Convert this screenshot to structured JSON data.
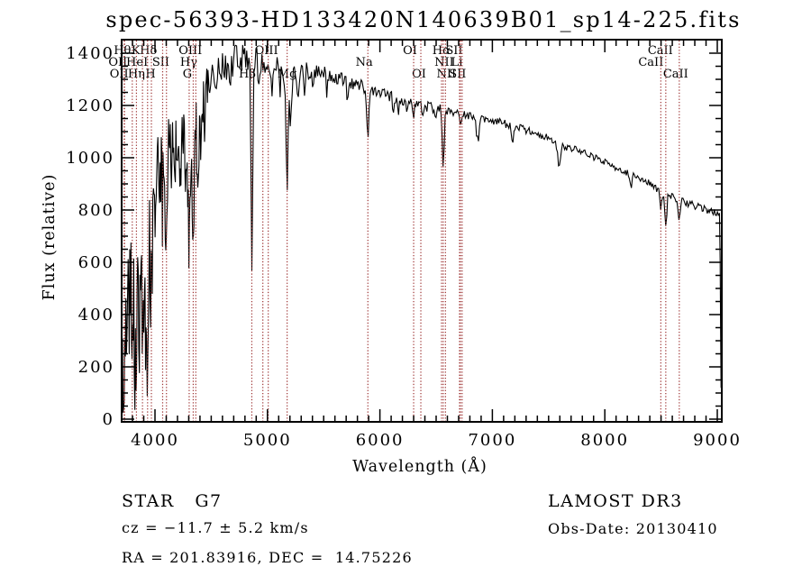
{
  "title": "spec-56393-HD133420N140639B01_sp14-225.fits",
  "footer": {
    "class_label": "STAR",
    "subclass": "G7",
    "survey": "LAMOST DR3",
    "cz": "cz = −11.7 ± 5.2 km/s",
    "obs_date": "Obs-Date: 20130410",
    "coords": "RA = 201.83916, DEC =  14.75226"
  },
  "chart_data": {
    "type": "line",
    "title": "spec-56393-HD133420N140639B01_sp14-225.fits",
    "xlabel": "Wavelength (Å)",
    "ylabel": "Flux (relative)",
    "xlim": [
      3703,
      9040
    ],
    "ylim": [
      0,
      1400
    ],
    "xticks": [
      4000,
      5000,
      6000,
      7000,
      8000,
      9000
    ],
    "yticks": [
      0,
      200,
      400,
      600,
      800,
      1000,
      1200,
      1400
    ],
    "x_minor_step": 100,
    "y_minor_step": 50,
    "grid": false,
    "curve_color": "#000000",
    "line_marker_color": "#9e3434",
    "spectral_lines": [
      {
        "wavelength": 3726,
        "label": "OII",
        "row": 2,
        "dx": -7
      },
      {
        "wavelength": 3729,
        "label": "OII",
        "row": 3,
        "dx": -6
      },
      {
        "wavelength": 3798,
        "label": "Hθ",
        "row": 1,
        "dx": -11
      },
      {
        "wavelength": 3835,
        "label": "Hη",
        "row": 3,
        "dx": 0
      },
      {
        "wavelength": 3889,
        "label": "HeI",
        "row": 2,
        "dx": -6
      },
      {
        "wavelength": 3934,
        "label": "K",
        "row": 1,
        "dx": -13
      },
      {
        "wavelength": 3968,
        "label": "H",
        "row": 3,
        "dx": -1
      },
      {
        "wavelength": 4068,
        "label": "SII",
        "row": 2,
        "dx": -2
      },
      {
        "wavelength": 4102,
        "label": "Hδ",
        "row": 1,
        "dx": -20
      },
      {
        "wavelength": 4304,
        "label": "G",
        "row": 3,
        "dx": -2
      },
      {
        "wavelength": 4340,
        "label": "Hγ",
        "row": 2,
        "dx": -5
      },
      {
        "wavelength": 4363,
        "label": "OIII",
        "row": 1,
        "dx": -6
      },
      {
        "wavelength": 4861,
        "label": "Hβ",
        "row": 3,
        "dx": -5
      },
      {
        "wavelength": 4959,
        "label": "OIII",
        "row": 1,
        "dx": 4
      },
      {
        "wavelength": 5007,
        "label": "",
        "row": 0,
        "dx": 0
      },
      {
        "wavelength": 5175,
        "label": "Mg",
        "row": 3,
        "dx": 0
      },
      {
        "wavelength": 5893,
        "label": "Na",
        "row": 2,
        "dx": -4
      },
      {
        "wavelength": 6300,
        "label": "OI",
        "row": 1,
        "dx": -4
      },
      {
        "wavelength": 6364,
        "label": "OI",
        "row": 3,
        "dx": -2
      },
      {
        "wavelength": 6548,
        "label": "NII",
        "row": 2,
        "dx": 3
      },
      {
        "wavelength": 6563,
        "label": "Hα",
        "row": 1,
        "dx": -2
      },
      {
        "wavelength": 6583,
        "label": "NII",
        "row": 3,
        "dx": 1
      },
      {
        "wavelength": 6708,
        "label": "Li",
        "row": 2,
        "dx": -3
      },
      {
        "wavelength": 6716,
        "label": "SII",
        "row": 1,
        "dx": -7
      },
      {
        "wavelength": 6731,
        "label": "SII",
        "row": 3,
        "dx": -5
      },
      {
        "wavelength": 8498,
        "label": "CaII",
        "row": 2,
        "dx": -11
      },
      {
        "wavelength": 8542,
        "label": "CaII",
        "row": 1,
        "dx": -6
      },
      {
        "wavelength": 8662,
        "label": "CaII",
        "row": 3,
        "dx": -4
      }
    ],
    "continuum": [
      [
        3700,
        430
      ],
      [
        3720,
        520
      ],
      [
        3745,
        620
      ],
      [
        3775,
        700
      ],
      [
        3805,
        735
      ],
      [
        3835,
        675
      ],
      [
        3870,
        730
      ],
      [
        3900,
        780
      ],
      [
        3935,
        790
      ],
      [
        3970,
        880
      ],
      [
        4000,
        990
      ],
      [
        4040,
        1040
      ],
      [
        4080,
        1055
      ],
      [
        4120,
        1075
      ],
      [
        4160,
        1100
      ],
      [
        4200,
        1110
      ],
      [
        4240,
        1100
      ],
      [
        4280,
        1085
      ],
      [
        4320,
        1090
      ],
      [
        4360,
        1130
      ],
      [
        4410,
        1210
      ],
      [
        4470,
        1290
      ],
      [
        4530,
        1330
      ],
      [
        4600,
        1355
      ],
      [
        4700,
        1372
      ],
      [
        4800,
        1376
      ],
      [
        4900,
        1372
      ],
      [
        5000,
        1370
      ],
      [
        5060,
        1352
      ],
      [
        5120,
        1332
      ],
      [
        5180,
        1318
      ],
      [
        5250,
        1326
      ],
      [
        5330,
        1336
      ],
      [
        5420,
        1330
      ],
      [
        5500,
        1320
      ],
      [
        5580,
        1310
      ],
      [
        5660,
        1300
      ],
      [
        5740,
        1292
      ],
      [
        5820,
        1282
      ],
      [
        5900,
        1262
      ],
      [
        5980,
        1252
      ],
      [
        6060,
        1240
      ],
      [
        6140,
        1230
      ],
      [
        6220,
        1218
      ],
      [
        6300,
        1207
      ],
      [
        6380,
        1198
      ],
      [
        6460,
        1192
      ],
      [
        6540,
        1185
      ],
      [
        6620,
        1178
      ],
      [
        6700,
        1172
      ],
      [
        6780,
        1166
      ],
      [
        6860,
        1148
      ],
      [
        6940,
        1152
      ],
      [
        7020,
        1142
      ],
      [
        7100,
        1132
      ],
      [
        7180,
        1120
      ],
      [
        7260,
        1112
      ],
      [
        7340,
        1100
      ],
      [
        7420,
        1088
      ],
      [
        7500,
        1075
      ],
      [
        7580,
        1052
      ],
      [
        7660,
        1040
      ],
      [
        7740,
        1032
      ],
      [
        7820,
        1018
      ],
      [
        7900,
        1002
      ],
      [
        7980,
        988
      ],
      [
        8060,
        970
      ],
      [
        8140,
        952
      ],
      [
        8220,
        938
      ],
      [
        8300,
        925
      ],
      [
        8380,
        908
      ],
      [
        8460,
        882
      ],
      [
        8540,
        860
      ],
      [
        8620,
        846
      ],
      [
        8700,
        832
      ],
      [
        8780,
        820
      ],
      [
        8860,
        808
      ],
      [
        8940,
        796
      ],
      [
        9010,
        786
      ],
      [
        9040,
        782
      ]
    ],
    "absorption_dips": [
      [
        3712,
        260,
        8
      ],
      [
        3727,
        300,
        8
      ],
      [
        3750,
        280,
        8
      ],
      [
        3770,
        300,
        7
      ],
      [
        3798,
        360,
        8
      ],
      [
        3820,
        380,
        8
      ],
      [
        3835,
        400,
        8
      ],
      [
        3860,
        320,
        8
      ],
      [
        3889,
        430,
        9
      ],
      [
        3912,
        250,
        7
      ],
      [
        3934,
        470,
        9
      ],
      [
        3968,
        430,
        9
      ],
      [
        4005,
        180,
        7
      ],
      [
        4045,
        220,
        7
      ],
      [
        4068,
        160,
        6
      ],
      [
        4102,
        330,
        9
      ],
      [
        4144,
        170,
        6
      ],
      [
        4180,
        120,
        6
      ],
      [
        4226,
        230,
        7
      ],
      [
        4270,
        150,
        6
      ],
      [
        4304,
        460,
        9
      ],
      [
        4340,
        430,
        8
      ],
      [
        4383,
        230,
        7
      ],
      [
        4405,
        160,
        6
      ],
      [
        4440,
        110,
        6
      ],
      [
        4530,
        120,
        6
      ],
      [
        4668,
        100,
        6
      ],
      [
        4861,
        700,
        8
      ],
      [
        4920,
        100,
        6
      ],
      [
        5040,
        80,
        6
      ],
      [
        5110,
        100,
        7
      ],
      [
        5175,
        390,
        10
      ],
      [
        5207,
        190,
        8
      ],
      [
        5270,
        130,
        7
      ],
      [
        5330,
        90,
        6
      ],
      [
        5405,
        90,
        6
      ],
      [
        5530,
        80,
        6
      ],
      [
        5710,
        70,
        6
      ],
      [
        5893,
        190,
        10
      ],
      [
        6122,
        80,
        7
      ],
      [
        6162,
        70,
        6
      ],
      [
        6240,
        50,
        6
      ],
      [
        6300,
        45,
        6
      ],
      [
        6380,
        45,
        6
      ],
      [
        6495,
        55,
        6
      ],
      [
        6563,
        215,
        8
      ],
      [
        6717,
        55,
        6
      ],
      [
        6870,
        85,
        10
      ],
      [
        7180,
        55,
        10
      ],
      [
        7594,
        75,
        12
      ],
      [
        8230,
        45,
        10
      ],
      [
        8498,
        75,
        8
      ],
      [
        8542,
        150,
        8
      ],
      [
        8662,
        100,
        8
      ]
    ],
    "noise_profile": [
      [
        3700,
        250
      ],
      [
        3780,
        225
      ],
      [
        3860,
        205
      ],
      [
        3940,
        185
      ],
      [
        4020,
        155
      ],
      [
        4100,
        145
      ],
      [
        4200,
        125
      ],
      [
        4300,
        115
      ],
      [
        4400,
        95
      ],
      [
        4500,
        78
      ],
      [
        4600,
        65
      ],
      [
        4800,
        56
      ],
      [
        5000,
        48
      ],
      [
        5200,
        42
      ],
      [
        5400,
        34
      ],
      [
        5600,
        29
      ],
      [
        5800,
        27
      ],
      [
        6000,
        24
      ],
      [
        6300,
        21
      ],
      [
        6600,
        18
      ],
      [
        7000,
        16
      ],
      [
        7500,
        13
      ],
      [
        8000,
        12
      ],
      [
        8500,
        14
      ],
      [
        9040,
        14
      ]
    ],
    "noise_seed": 9,
    "end_drop": [
      [
        9026,
        600
      ],
      [
        9030,
        330
      ],
      [
        9034,
        120
      ]
    ]
  }
}
